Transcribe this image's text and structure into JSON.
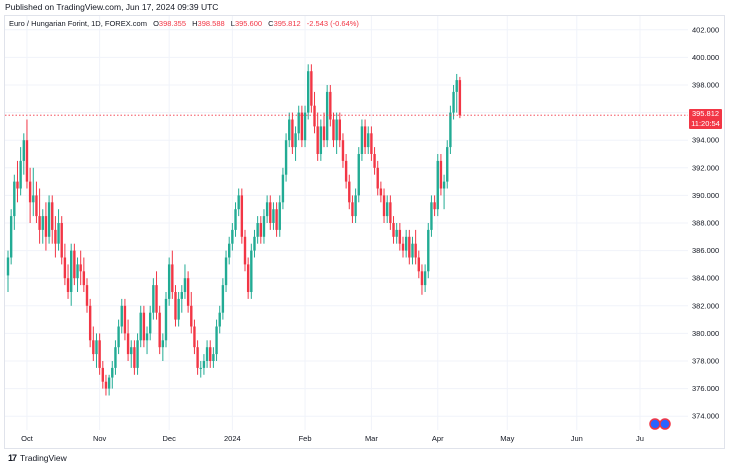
{
  "header": {
    "published": "Published on TradingView.com, Jun 17, 2024 09:39 UTC"
  },
  "legend": {
    "symbol": "Euro / Hungarian Forint, 1D, FOREX.com",
    "o_label": "O",
    "o_value": "398.355",
    "h_label": "H",
    "h_value": "398.588",
    "l_label": "L",
    "l_value": "395.600",
    "c_label": "C",
    "c_value": "395.812",
    "change": "-2.543 (-0.64%)"
  },
  "price_tag": {
    "price": "395.812",
    "countdown": "11:20:54"
  },
  "footer": {
    "brand": "TradingView"
  },
  "colors": {
    "up": "#22ab94",
    "down": "#f23645",
    "grid": "#f0f3fa"
  },
  "chart_data": {
    "type": "candlestick",
    "ylim": [
      373.0,
      403.0
    ],
    "y_ticks": [
      374,
      376,
      378,
      380,
      382,
      384,
      386,
      388,
      390,
      392,
      394,
      396,
      398,
      400,
      402
    ],
    "y_tick_labels": [
      "374.000",
      "376.000",
      "378.000",
      "380.000",
      "382.000",
      "384.000",
      "386.000",
      "388.000",
      "390.000",
      "392.000",
      "394.000",
      "396.000",
      "398.000",
      "400.000",
      "402.000"
    ],
    "x_tick_labels": [
      {
        "label": "Oct",
        "index": 6
      },
      {
        "label": "Nov",
        "index": 29
      },
      {
        "label": "Dec",
        "index": 51
      },
      {
        "label": "2024",
        "index": 71
      },
      {
        "label": "Feb",
        "index": 94
      },
      {
        "label": "Mar",
        "index": 115
      },
      {
        "label": "Apr",
        "index": 136
      },
      {
        "label": "May",
        "index": 158
      },
      {
        "label": "Jun",
        "index": 180
      },
      {
        "label": "Ju",
        "index": 200
      }
    ],
    "last_price": 395.812,
    "candles": [
      [
        384.2,
        386.0,
        383.0,
        385.5
      ],
      [
        385.5,
        389.0,
        385.0,
        388.5
      ],
      [
        388.5,
        391.5,
        387.5,
        391.0
      ],
      [
        391.0,
        392.5,
        389.5,
        390.5
      ],
      [
        390.5,
        393.5,
        390.0,
        392.5
      ],
      [
        392.5,
        394.5,
        391.5,
        394.0
      ],
      [
        394.0,
        395.5,
        390.5,
        391.0
      ],
      [
        391.0,
        392.0,
        388.0,
        389.5
      ],
      [
        389.5,
        392.0,
        388.5,
        390.0
      ],
      [
        390.0,
        391.0,
        388.0,
        388.5
      ],
      [
        388.5,
        390.5,
        386.5,
        387.5
      ],
      [
        387.5,
        389.0,
        386.5,
        388.5
      ],
      [
        388.5,
        389.5,
        386.0,
        387.0
      ],
      [
        387.0,
        390.0,
        386.5,
        389.5
      ],
      [
        389.5,
        390.0,
        386.5,
        387.5
      ],
      [
        387.5,
        388.5,
        385.5,
        386.5
      ],
      [
        386.5,
        389.0,
        386.0,
        388.0
      ],
      [
        388.0,
        388.5,
        385.0,
        385.5
      ],
      [
        385.5,
        386.5,
        383.5,
        384.0
      ],
      [
        384.0,
        385.0,
        382.5,
        383.0
      ],
      [
        383.0,
        386.5,
        382.0,
        386.0
      ],
      [
        386.0,
        386.5,
        383.5,
        384.0
      ],
      [
        384.0,
        385.5,
        383.0,
        385.0
      ],
      [
        385.0,
        386.0,
        383.5,
        384.5
      ],
      [
        384.5,
        385.5,
        383.0,
        383.5
      ],
      [
        383.5,
        384.0,
        381.5,
        382.0
      ],
      [
        382.0,
        382.5,
        379.0,
        379.5
      ],
      [
        379.5,
        380.5,
        378.0,
        378.5
      ],
      [
        378.5,
        380.0,
        377.5,
        379.5
      ],
      [
        379.5,
        380.0,
        377.0,
        377.5
      ],
      [
        377.5,
        378.0,
        376.0,
        376.5
      ],
      [
        376.5,
        377.0,
        375.5,
        376.0
      ],
      [
        376.0,
        377.0,
        375.5,
        376.8
      ],
      [
        376.8,
        378.0,
        376.0,
        377.5
      ],
      [
        377.5,
        379.5,
        377.0,
        379.0
      ],
      [
        379.0,
        381.0,
        378.5,
        380.5
      ],
      [
        380.5,
        382.5,
        380.0,
        382.0
      ],
      [
        382.0,
        382.5,
        379.5,
        380.0
      ],
      [
        380.0,
        381.0,
        378.0,
        378.5
      ],
      [
        378.5,
        379.5,
        377.5,
        379.0
      ],
      [
        379.0,
        379.5,
        377.0,
        377.5
      ],
      [
        377.5,
        380.0,
        377.0,
        379.5
      ],
      [
        379.5,
        382.0,
        379.0,
        381.5
      ],
      [
        381.5,
        382.0,
        379.0,
        379.5
      ],
      [
        379.5,
        380.5,
        378.5,
        380.0
      ],
      [
        380.0,
        382.0,
        379.5,
        381.5
      ],
      [
        381.5,
        384.0,
        381.0,
        383.5
      ],
      [
        383.5,
        384.5,
        381.0,
        381.5
      ],
      [
        381.5,
        382.0,
        378.5,
        379.0
      ],
      [
        379.0,
        380.0,
        378.0,
        379.5
      ],
      [
        379.5,
        383.0,
        379.0,
        382.5
      ],
      [
        382.5,
        385.5,
        382.0,
        385.0
      ],
      [
        385.0,
        386.0,
        382.5,
        383.0
      ],
      [
        383.0,
        383.5,
        380.5,
        381.0
      ],
      [
        381.0,
        383.0,
        380.5,
        382.5
      ],
      [
        382.5,
        383.5,
        381.5,
        383.0
      ],
      [
        383.0,
        385.0,
        382.5,
        384.0
      ],
      [
        384.0,
        384.5,
        381.5,
        382.0
      ],
      [
        382.0,
        383.0,
        380.0,
        380.5
      ],
      [
        380.5,
        381.0,
        378.5,
        379.0
      ],
      [
        379.0,
        379.5,
        377.0,
        377.5
      ],
      [
        377.5,
        378.0,
        376.8,
        377.5
      ],
      [
        377.5,
        378.5,
        377.0,
        378.0
      ],
      [
        378.0,
        379.5,
        377.5,
        379.0
      ],
      [
        379.0,
        379.5,
        377.5,
        378.0
      ],
      [
        378.0,
        379.0,
        377.5,
        378.5
      ],
      [
        378.5,
        381.0,
        378.0,
        380.5
      ],
      [
        380.5,
        382.0,
        380.0,
        381.5
      ],
      [
        381.5,
        384.0,
        381.0,
        383.5
      ],
      [
        383.5,
        386.0,
        383.0,
        385.5
      ],
      [
        385.5,
        387.0,
        385.0,
        386.5
      ],
      [
        386.5,
        388.0,
        386.0,
        387.5
      ],
      [
        387.5,
        389.5,
        387.0,
        389.0
      ],
      [
        389.0,
        390.5,
        388.5,
        390.0
      ],
      [
        390.0,
        390.5,
        386.5,
        387.0
      ],
      [
        387.0,
        387.5,
        384.5,
        385.0
      ],
      [
        385.0,
        385.5,
        382.5,
        383.0
      ],
      [
        383.0,
        386.5,
        382.5,
        386.0
      ],
      [
        386.0,
        387.5,
        385.5,
        387.0
      ],
      [
        387.0,
        388.5,
        386.5,
        388.0
      ],
      [
        388.0,
        388.5,
        386.5,
        387.0
      ],
      [
        387.0,
        389.0,
        386.5,
        388.5
      ],
      [
        388.5,
        390.0,
        388.0,
        389.5
      ],
      [
        389.5,
        390.0,
        387.5,
        388.0
      ],
      [
        388.0,
        389.5,
        387.5,
        389.0
      ],
      [
        389.0,
        389.5,
        387.0,
        387.5
      ],
      [
        387.5,
        390.0,
        387.0,
        389.5
      ],
      [
        389.5,
        392.0,
        389.0,
        391.5
      ],
      [
        391.5,
        394.5,
        391.0,
        394.0
      ],
      [
        394.0,
        396.0,
        393.5,
        395.5
      ],
      [
        395.5,
        396.0,
        393.0,
        393.5
      ],
      [
        393.5,
        395.0,
        392.5,
        394.5
      ],
      [
        394.5,
        396.5,
        394.0,
        396.0
      ],
      [
        396.0,
        396.5,
        393.5,
        394.0
      ],
      [
        394.0,
        396.5,
        393.5,
        396.0
      ],
      [
        396.0,
        399.5,
        395.5,
        399.0
      ],
      [
        399.0,
        399.5,
        396.0,
        396.5
      ],
      [
        396.5,
        397.5,
        394.5,
        395.0
      ],
      [
        395.0,
        396.0,
        392.5,
        393.0
      ],
      [
        393.0,
        395.5,
        392.5,
        395.0
      ],
      [
        395.0,
        396.0,
        393.5,
        394.0
      ],
      [
        394.0,
        398.0,
        393.5,
        397.5
      ],
      [
        397.5,
        398.0,
        395.0,
        395.5
      ],
      [
        395.5,
        396.0,
        393.5,
        394.0
      ],
      [
        394.0,
        396.0,
        393.0,
        395.5
      ],
      [
        395.5,
        396.0,
        393.5,
        394.0
      ],
      [
        394.0,
        394.5,
        392.0,
        392.5
      ],
      [
        392.5,
        393.0,
        390.5,
        391.0
      ],
      [
        391.0,
        391.5,
        389.0,
        389.5
      ],
      [
        389.5,
        390.0,
        388.0,
        388.5
      ],
      [
        388.5,
        390.5,
        388.0,
        390.0
      ],
      [
        390.0,
        393.5,
        389.5,
        393.0
      ],
      [
        393.0,
        395.5,
        392.5,
        395.0
      ],
      [
        395.0,
        395.5,
        393.0,
        393.5
      ],
      [
        393.5,
        395.0,
        393.0,
        394.5
      ],
      [
        394.5,
        395.0,
        392.5,
        393.0
      ],
      [
        393.0,
        393.5,
        391.5,
        392.0
      ],
      [
        392.0,
        392.5,
        390.0,
        390.5
      ],
      [
        390.5,
        391.0,
        389.5,
        390.0
      ],
      [
        390.0,
        390.5,
        388.0,
        388.5
      ],
      [
        388.5,
        390.0,
        388.0,
        389.5
      ],
      [
        389.5,
        390.0,
        387.5,
        388.0
      ],
      [
        388.0,
        388.5,
        386.5,
        387.0
      ],
      [
        387.0,
        388.0,
        386.5,
        387.5
      ],
      [
        387.5,
        388.0,
        386.0,
        386.5
      ],
      [
        386.5,
        387.0,
        385.5,
        386.0
      ],
      [
        386.0,
        387.5,
        385.5,
        387.0
      ],
      [
        387.0,
        387.5,
        385.0,
        385.5
      ],
      [
        385.5,
        387.0,
        385.0,
        386.5
      ],
      [
        386.5,
        387.5,
        385.0,
        385.5
      ],
      [
        385.5,
        386.0,
        384.0,
        384.5
      ],
      [
        384.5,
        385.0,
        382.8,
        383.5
      ],
      [
        383.5,
        385.0,
        383.0,
        384.5
      ],
      [
        384.5,
        388.0,
        384.0,
        387.5
      ],
      [
        387.5,
        390.0,
        387.0,
        389.5
      ],
      [
        389.5,
        390.0,
        388.5,
        389.0
      ],
      [
        389.0,
        393.0,
        388.5,
        392.5
      ],
      [
        392.5,
        393.0,
        390.0,
        390.5
      ],
      [
        390.5,
        391.5,
        389.0,
        391.0
      ],
      [
        391.0,
        394.0,
        390.5,
        393.5
      ],
      [
        393.5,
        396.5,
        393.0,
        396.0
      ],
      [
        396.0,
        398.0,
        395.5,
        397.5
      ],
      [
        397.5,
        398.8,
        396.0,
        398.355
      ],
      [
        398.355,
        398.588,
        395.6,
        395.812
      ]
    ]
  }
}
